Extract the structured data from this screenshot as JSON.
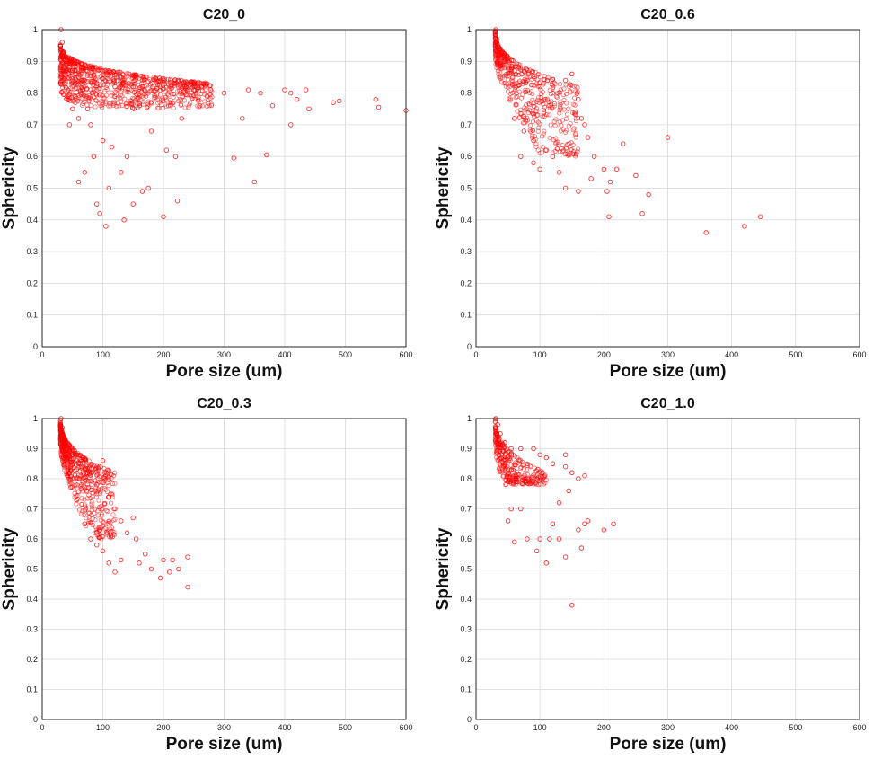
{
  "chart_data": [
    {
      "type": "scatter",
      "title": "C20_0",
      "xlabel": "Pore size (um)",
      "ylabel": "Sphericity",
      "xlim": [
        0,
        600
      ],
      "ylim": [
        0,
        1
      ],
      "xticks": [
        "0",
        "100",
        "200",
        "300",
        "400",
        "500",
        "600"
      ],
      "yticks": [
        "0",
        "0.1",
        "0.2",
        "0.3",
        "0.4",
        "0.5",
        "0.6",
        "0.7",
        "0.8",
        "0.9",
        "1"
      ],
      "marker": "circle-open",
      "color": "#ff0000",
      "points": [
        [
          31,
          1.0
        ],
        [
          33,
          0.96
        ],
        [
          35,
          0.93
        ],
        [
          40,
          0.9
        ],
        [
          45,
          0.88
        ],
        [
          55,
          0.86
        ],
        [
          70,
          0.84
        ],
        [
          90,
          0.83
        ],
        [
          120,
          0.82
        ],
        [
          150,
          0.82
        ],
        [
          200,
          0.815
        ],
        [
          250,
          0.81
        ],
        [
          300,
          0.8
        ],
        [
          340,
          0.81
        ],
        [
          360,
          0.8
        ],
        [
          400,
          0.81
        ],
        [
          410,
          0.8
        ],
        [
          420,
          0.78
        ],
        [
          435,
          0.81
        ],
        [
          440,
          0.75
        ],
        [
          480,
          0.77
        ],
        [
          490,
          0.775
        ],
        [
          550,
          0.78
        ],
        [
          555,
          0.755
        ],
        [
          600,
          0.745
        ],
        [
          316,
          0.595
        ],
        [
          350,
          0.52
        ],
        [
          370,
          0.605
        ],
        [
          410,
          0.7
        ],
        [
          330,
          0.72
        ],
        [
          380,
          0.76
        ],
        [
          260,
          0.76
        ],
        [
          230,
          0.72
        ],
        [
          180,
          0.68
        ],
        [
          175,
          0.5
        ],
        [
          165,
          0.49
        ],
        [
          200,
          0.41
        ],
        [
          205,
          0.62
        ],
        [
          220,
          0.6
        ],
        [
          223,
          0.46
        ],
        [
          150,
          0.45
        ],
        [
          135,
          0.4
        ],
        [
          105,
          0.38
        ],
        [
          95,
          0.42
        ],
        [
          90,
          0.45
        ],
        [
          85,
          0.6
        ],
        [
          70,
          0.55
        ],
        [
          60,
          0.52
        ],
        [
          130,
          0.55
        ],
        [
          140,
          0.6
        ],
        [
          110,
          0.5
        ],
        [
          115,
          0.63
        ],
        [
          100,
          0.65
        ],
        [
          80,
          0.7
        ],
        [
          75,
          0.75
        ],
        [
          60,
          0.72
        ],
        [
          50,
          0.75
        ],
        [
          45,
          0.7
        ]
      ],
      "cluster": {
        "x_min": 30,
        "x_max": 280,
        "y_floor": 0.72
      }
    },
    {
      "type": "scatter",
      "title": "C20_0.6",
      "xlabel": "Pore size (um)",
      "ylabel": "Sphericity",
      "xlim": [
        0,
        600
      ],
      "ylim": [
        0,
        1
      ],
      "xticks": [
        "0",
        "100",
        "200",
        "300",
        "400",
        "500",
        "600"
      ],
      "yticks": [
        "0",
        "0.1",
        "0.2",
        "0.3",
        "0.4",
        "0.5",
        "0.6",
        "0.7",
        "0.8",
        "0.9",
        "1"
      ],
      "marker": "circle-open",
      "color": "#ff0000",
      "points": [
        [
          31,
          1.0
        ],
        [
          33,
          0.97
        ],
        [
          38,
          0.94
        ],
        [
          45,
          0.9
        ],
        [
          60,
          0.87
        ],
        [
          80,
          0.84
        ],
        [
          100,
          0.82
        ],
        [
          120,
          0.8
        ],
        [
          140,
          0.84
        ],
        [
          150,
          0.86
        ],
        [
          160,
          0.78
        ],
        [
          155,
          0.74
        ],
        [
          165,
          0.72
        ],
        [
          170,
          0.7
        ],
        [
          175,
          0.66
        ],
        [
          185,
          0.6
        ],
        [
          200,
          0.56
        ],
        [
          210,
          0.52
        ],
        [
          205,
          0.49
        ],
        [
          208,
          0.41
        ],
        [
          220,
          0.56
        ],
        [
          230,
          0.64
        ],
        [
          250,
          0.54
        ],
        [
          260,
          0.42
        ],
        [
          270,
          0.48
        ],
        [
          300,
          0.66
        ],
        [
          360,
          0.36
        ],
        [
          420,
          0.38
        ],
        [
          445,
          0.41
        ],
        [
          130,
          0.55
        ],
        [
          120,
          0.6
        ],
        [
          110,
          0.62
        ],
        [
          90,
          0.65
        ],
        [
          75,
          0.68
        ],
        [
          60,
          0.72
        ],
        [
          70,
          0.6
        ],
        [
          90,
          0.58
        ],
        [
          100,
          0.56
        ],
        [
          140,
          0.5
        ],
        [
          180,
          0.53
        ],
        [
          160,
          0.49
        ]
      ],
      "cluster": {
        "x_min": 30,
        "x_max": 160,
        "y_floor": 0.6
      }
    },
    {
      "type": "scatter",
      "title": "C20_0.3",
      "xlabel": "Pore size (um)",
      "ylabel": "Sphericity",
      "xlim": [
        0,
        600
      ],
      "ylim": [
        0,
        1
      ],
      "xticks": [
        "0",
        "100",
        "200",
        "300",
        "400",
        "500",
        "600"
      ],
      "yticks": [
        "0",
        "0.1",
        "0.2",
        "0.3",
        "0.4",
        "0.5",
        "0.6",
        "0.7",
        "0.8",
        "0.9",
        "1"
      ],
      "marker": "circle-open",
      "color": "#ff0000",
      "points": [
        [
          31,
          1.0
        ],
        [
          33,
          0.97
        ],
        [
          36,
          0.94
        ],
        [
          40,
          0.91
        ],
        [
          50,
          0.88
        ],
        [
          60,
          0.85
        ],
        [
          75,
          0.82
        ],
        [
          90,
          0.78
        ],
        [
          100,
          0.86
        ],
        [
          110,
          0.74
        ],
        [
          120,
          0.7
        ],
        [
          130,
          0.66
        ],
        [
          140,
          0.62
        ],
        [
          150,
          0.67
        ],
        [
          155,
          0.6
        ],
        [
          160,
          0.52
        ],
        [
          170,
          0.55
        ],
        [
          180,
          0.5
        ],
        [
          195,
          0.47
        ],
        [
          200,
          0.53
        ],
        [
          210,
          0.49
        ],
        [
          215,
          0.53
        ],
        [
          225,
          0.5
        ],
        [
          240,
          0.44
        ],
        [
          240,
          0.54
        ],
        [
          130,
          0.53
        ],
        [
          120,
          0.49
        ],
        [
          110,
          0.52
        ],
        [
          100,
          0.56
        ],
        [
          90,
          0.58
        ],
        [
          80,
          0.6
        ],
        [
          70,
          0.65
        ]
      ],
      "cluster": {
        "x_min": 30,
        "x_max": 120,
        "y_floor": 0.6
      }
    },
    {
      "type": "scatter",
      "title": "C20_1.0",
      "xlabel": "Pore size (um)",
      "ylabel": "Sphericity",
      "xlim": [
        0,
        600
      ],
      "ylim": [
        0,
        1
      ],
      "xticks": [
        "0",
        "100",
        "200",
        "300",
        "400",
        "500",
        "600"
      ],
      "yticks": [
        "0",
        "0.1",
        "0.2",
        "0.3",
        "0.4",
        "0.5",
        "0.6",
        "0.7",
        "0.8",
        "0.9",
        "1"
      ],
      "marker": "circle-open",
      "color": "#ff0000",
      "points": [
        [
          31,
          1.0
        ],
        [
          34,
          0.98
        ],
        [
          38,
          0.95
        ],
        [
          45,
          0.92
        ],
        [
          55,
          0.9
        ],
        [
          70,
          0.9
        ],
        [
          90,
          0.9
        ],
        [
          100,
          0.88
        ],
        [
          110,
          0.87
        ],
        [
          120,
          0.85
        ],
        [
          140,
          0.84
        ],
        [
          150,
          0.82
        ],
        [
          160,
          0.8
        ],
        [
          170,
          0.81
        ],
        [
          140,
          0.88
        ],
        [
          145,
          0.76
        ],
        [
          130,
          0.72
        ],
        [
          120,
          0.65
        ],
        [
          115,
          0.6
        ],
        [
          110,
          0.52
        ],
        [
          100,
          0.6
        ],
        [
          95,
          0.56
        ],
        [
          80,
          0.6
        ],
        [
          60,
          0.59
        ],
        [
          50,
          0.66
        ],
        [
          55,
          0.7
        ],
        [
          70,
          0.7
        ],
        [
          150,
          0.38
        ],
        [
          160,
          0.63
        ],
        [
          165,
          0.57
        ],
        [
          170,
          0.65
        ],
        [
          175,
          0.66
        ],
        [
          200,
          0.63
        ],
        [
          215,
          0.65
        ],
        [
          130,
          0.6
        ],
        [
          140,
          0.54
        ]
      ],
      "cluster": {
        "x_min": 30,
        "x_max": 110,
        "y_floor": 0.78
      }
    }
  ]
}
